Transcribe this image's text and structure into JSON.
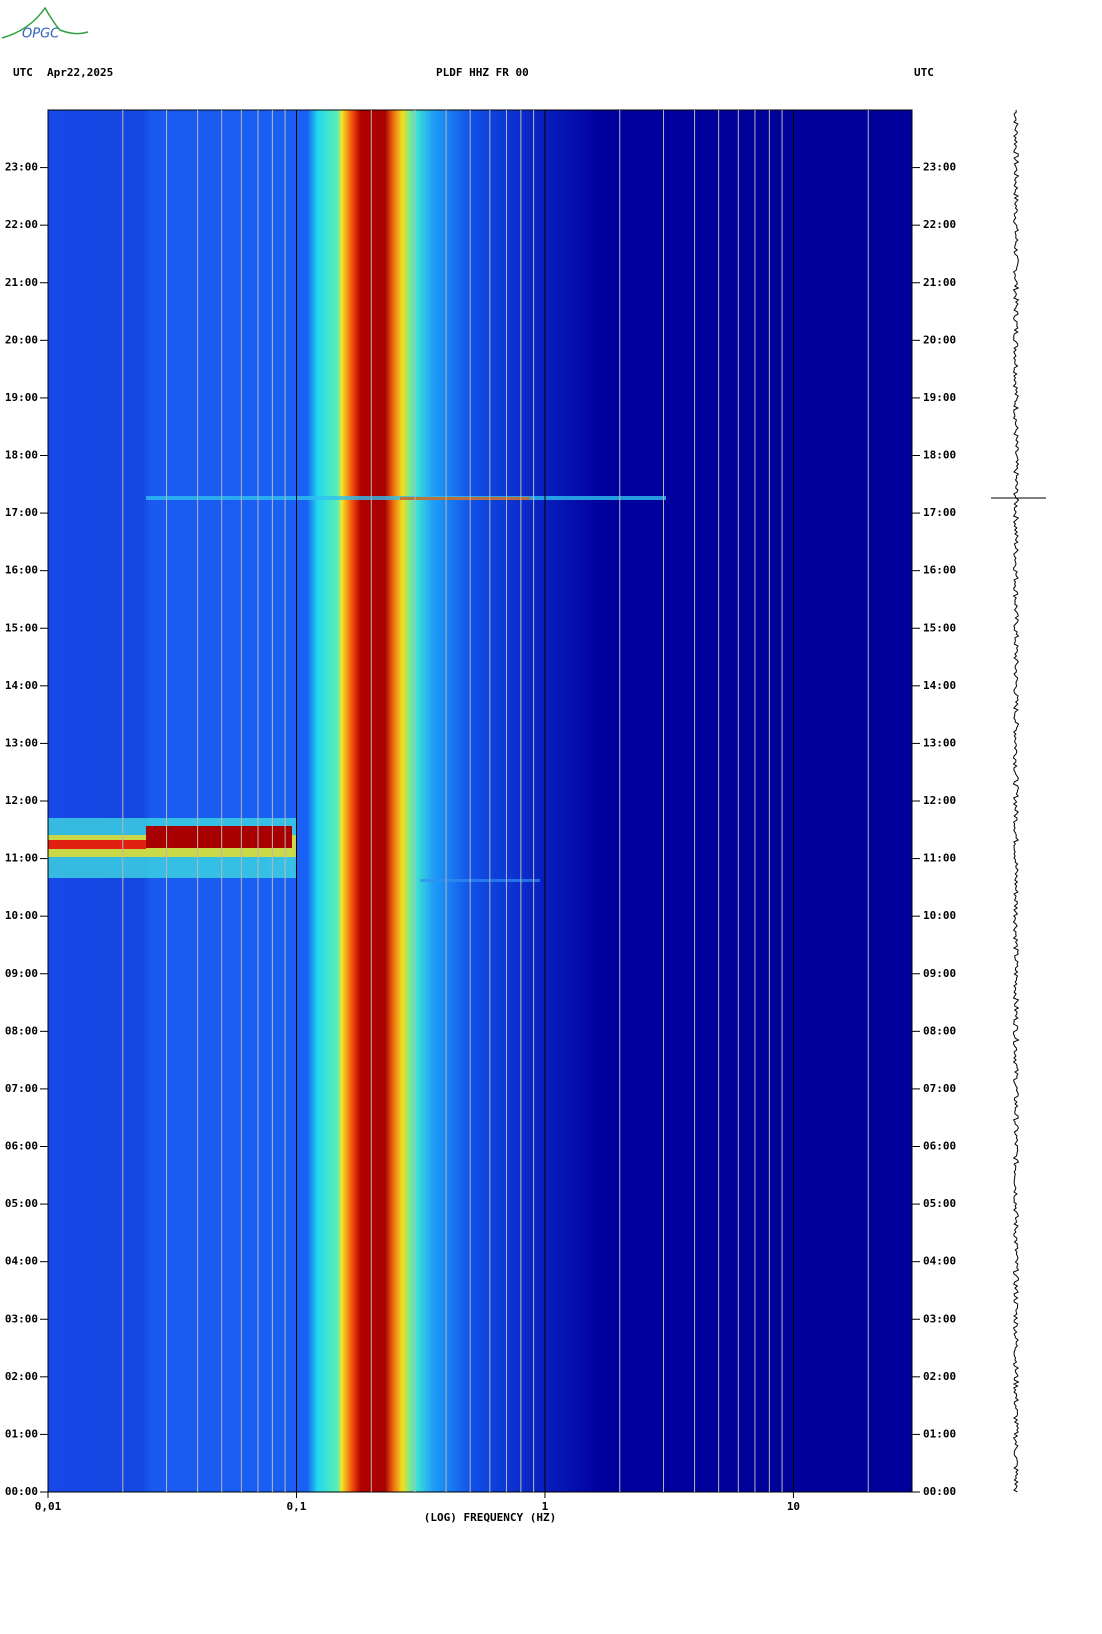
{
  "logo": "OPGC",
  "chart_data": {
    "type": "spectrogram",
    "title": "PLDF HHZ FR 00",
    "date": "Apr22,2025",
    "left_timezone": "UTC",
    "right_timezone": "UTC",
    "x_label": "(LOG) FREQUENCY (HZ)",
    "x_log_scale": true,
    "xlim": [
      0.01,
      30
    ],
    "xticks": [
      {
        "value": 0.01,
        "label": "0,01"
      },
      {
        "value": 0.1,
        "label": "0,1"
      },
      1,
      10
    ],
    "xminorticks": [
      0.02,
      0.03,
      0.04,
      0.05,
      0.06,
      0.07,
      0.08,
      0.09,
      0.2,
      0.3,
      0.4,
      0.5,
      0.6,
      0.7,
      0.8,
      0.9,
      2,
      3,
      4,
      5,
      6,
      7,
      8,
      9,
      20
    ],
    "ylim": [
      0,
      24
    ],
    "yticks": [
      {
        "value": 0,
        "label": "00:00"
      },
      {
        "value": 1,
        "label": "01:00"
      },
      {
        "value": 2,
        "label": "02:00"
      },
      {
        "value": 3,
        "label": "03:00"
      },
      {
        "value": 4,
        "label": "04:00"
      },
      {
        "value": 5,
        "label": "05:00"
      },
      {
        "value": 6,
        "label": "06:00"
      },
      {
        "value": 7,
        "label": "07:00"
      },
      {
        "value": 8,
        "label": "08:00"
      },
      {
        "value": 9,
        "label": "09:00"
      },
      {
        "value": 10,
        "label": "10:00"
      },
      {
        "value": 11,
        "label": "11:00"
      },
      {
        "value": 12,
        "label": "12:00"
      },
      {
        "value": 13,
        "label": "13:00"
      },
      {
        "value": 14,
        "label": "14:00"
      },
      {
        "value": 15,
        "label": "15:00"
      },
      {
        "value": 16,
        "label": "16:00"
      },
      {
        "value": 17,
        "label": "17:00"
      },
      {
        "value": 18,
        "label": "18:00"
      },
      {
        "value": 19,
        "label": "19:00"
      },
      {
        "value": 20,
        "label": "20:00"
      },
      {
        "value": 21,
        "label": "21:00"
      },
      {
        "value": 22,
        "label": "22:00"
      },
      {
        "value": 23,
        "label": "23:00"
      }
    ]
  }
}
